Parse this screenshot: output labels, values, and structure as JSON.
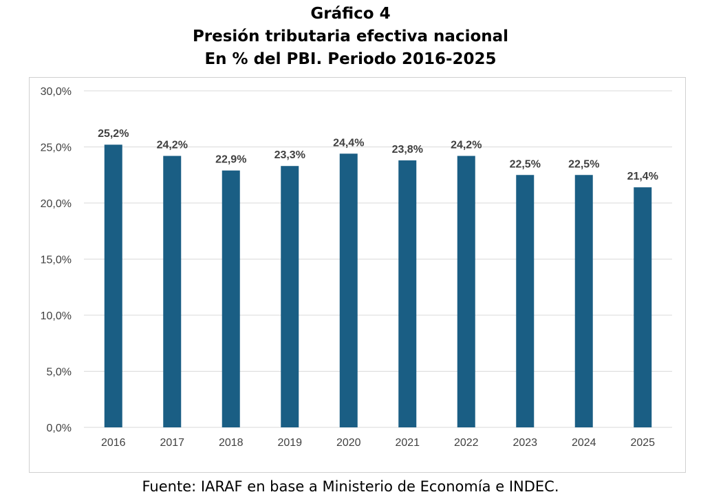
{
  "header": {
    "line1": "Gráfico 4",
    "line2": "Presión tributaria efectiva nacional",
    "line3": "En % del PBI. Periodo 2016-2025"
  },
  "footer": {
    "source": "Fuente: IARAF en base a Ministerio de Economía e INDEC."
  },
  "chart_data": {
    "type": "bar",
    "title": "Presión tributaria efectiva nacional",
    "subtitle": "En % del PBI. Periodo 2016-2025",
    "xlabel": "",
    "ylabel": "",
    "categories": [
      "2016",
      "2017",
      "2018",
      "2019",
      "2020",
      "2021",
      "2022",
      "2023",
      "2024",
      "2025"
    ],
    "values": [
      25.2,
      24.2,
      22.9,
      23.3,
      24.4,
      23.8,
      24.2,
      22.5,
      22.5,
      21.4
    ],
    "value_labels": [
      "25,2%",
      "24,2%",
      "22,9%",
      "23,3%",
      "24,4%",
      "23,8%",
      "24,2%",
      "22,5%",
      "22,5%",
      "21,4%"
    ],
    "ylim": [
      0,
      30
    ],
    "yticks": [
      0,
      5,
      10,
      15,
      20,
      25,
      30
    ],
    "ytick_labels": [
      "0,0%",
      "5,0%",
      "10,0%",
      "15,0%",
      "20,0%",
      "25,0%",
      "30,0%"
    ],
    "grid": true,
    "legend": "none",
    "bar_color": "#1a5e84",
    "grid_color": "#d9d9d9"
  }
}
